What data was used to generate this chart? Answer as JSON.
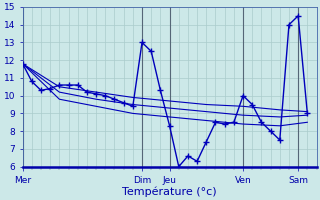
{
  "background_color": "#cce8e8",
  "grid_color": "#aacccc",
  "line_color": "#0000bb",
  "xlabel": "Température (°c)",
  "ylim": [
    6,
    15
  ],
  "yticks": [
    6,
    7,
    8,
    9,
    10,
    11,
    12,
    13,
    14,
    15
  ],
  "day_labels": [
    "Mer",
    "Dim",
    "Jeu",
    "Ven",
    "Sam"
  ],
  "day_positions": [
    0,
    13,
    16,
    24,
    30
  ],
  "xlim": [
    0,
    32
  ],
  "series": [
    {
      "x": [
        0,
        1,
        2,
        3,
        4,
        5,
        6,
        7,
        8,
        9,
        10,
        11,
        12,
        13,
        14,
        15,
        16,
        17,
        18,
        19,
        20,
        21,
        22,
        23,
        24,
        25,
        26,
        27,
        28,
        29,
        30,
        31
      ],
      "y": [
        11.8,
        10.8,
        10.3,
        10.4,
        10.6,
        10.6,
        10.6,
        10.2,
        10.1,
        10.0,
        9.8,
        9.6,
        9.4,
        13.0,
        12.5,
        10.3,
        8.3,
        6.0,
        6.6,
        6.3,
        7.4,
        8.5,
        8.4,
        8.5,
        10.0,
        9.5,
        8.5,
        8.0,
        7.5,
        14.0,
        14.5,
        9.0
      ],
      "marker": true
    },
    {
      "x": [
        0,
        4,
        8,
        12,
        16,
        20,
        24,
        28,
        31
      ],
      "y": [
        11.8,
        10.5,
        10.2,
        9.9,
        9.7,
        9.5,
        9.4,
        9.2,
        9.1
      ],
      "marker": false
    },
    {
      "x": [
        0,
        4,
        8,
        12,
        16,
        20,
        24,
        28,
        31
      ],
      "y": [
        11.8,
        10.2,
        9.8,
        9.5,
        9.3,
        9.1,
        8.9,
        8.8,
        8.9
      ],
      "marker": false
    },
    {
      "x": [
        0,
        4,
        8,
        12,
        16,
        20,
        24,
        28,
        31
      ],
      "y": [
        11.8,
        9.8,
        9.4,
        9.0,
        8.8,
        8.6,
        8.4,
        8.3,
        8.5
      ],
      "marker": false
    }
  ],
  "vline_positions": [
    0,
    13,
    16,
    24,
    30
  ],
  "vline_color": "#556677",
  "tick_color": "#0000aa",
  "label_color": "#0000aa",
  "tick_fontsize": 6.5,
  "xlabel_fontsize": 8
}
